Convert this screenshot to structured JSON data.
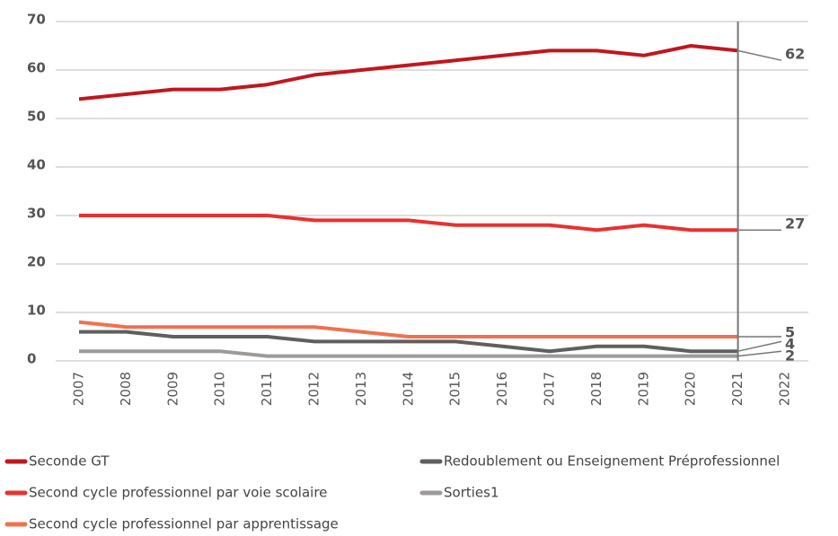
{
  "chart_data": {
    "type": "line",
    "categories": [
      "2007",
      "2008",
      "2009",
      "2010",
      "2011",
      "2012",
      "2013",
      "2014",
      "2015",
      "2016",
      "2017",
      "2018",
      "2019",
      "2020",
      "2021",
      "2022"
    ],
    "series": [
      {
        "name": "Seconde GT",
        "color": "#c0171f",
        "values": [
          54,
          55,
          56,
          56,
          57,
          59,
          60,
          61,
          62,
          63,
          64,
          64,
          63,
          65,
          64,
          null
        ]
      },
      {
        "name": "Redoublement ou Enseignement Préprofessionnel",
        "color": "#5f5f5f",
        "values": [
          6,
          6,
          5,
          5,
          5,
          4,
          4,
          4,
          4,
          3,
          2,
          3,
          3,
          2,
          2,
          null
        ]
      },
      {
        "name": "Second cycle professionnel par voie scolaire",
        "color": "#e8312f",
        "values": [
          30,
          30,
          30,
          30,
          30,
          29,
          29,
          29,
          28,
          28,
          28,
          27,
          28,
          27,
          27,
          null
        ]
      },
      {
        "name": "Sorties1",
        "color": "#9e9a98",
        "values": [
          2,
          2,
          2,
          2,
          1,
          1,
          1,
          1,
          1,
          1,
          1,
          1,
          1,
          1,
          1,
          null
        ]
      },
      {
        "name": "Second cycle professionnel par apprentissage",
        "color": "#f0714f",
        "values": [
          8,
          7,
          7,
          7,
          7,
          7,
          6,
          5,
          5,
          5,
          5,
          5,
          5,
          5,
          5,
          null
        ]
      }
    ],
    "end_labels": [
      62,
      27,
      5,
      4,
      2
    ],
    "ylim": [
      0,
      70
    ],
    "yticks": [
      0,
      10,
      20,
      30,
      40,
      50,
      60,
      70
    ],
    "grid": true
  }
}
